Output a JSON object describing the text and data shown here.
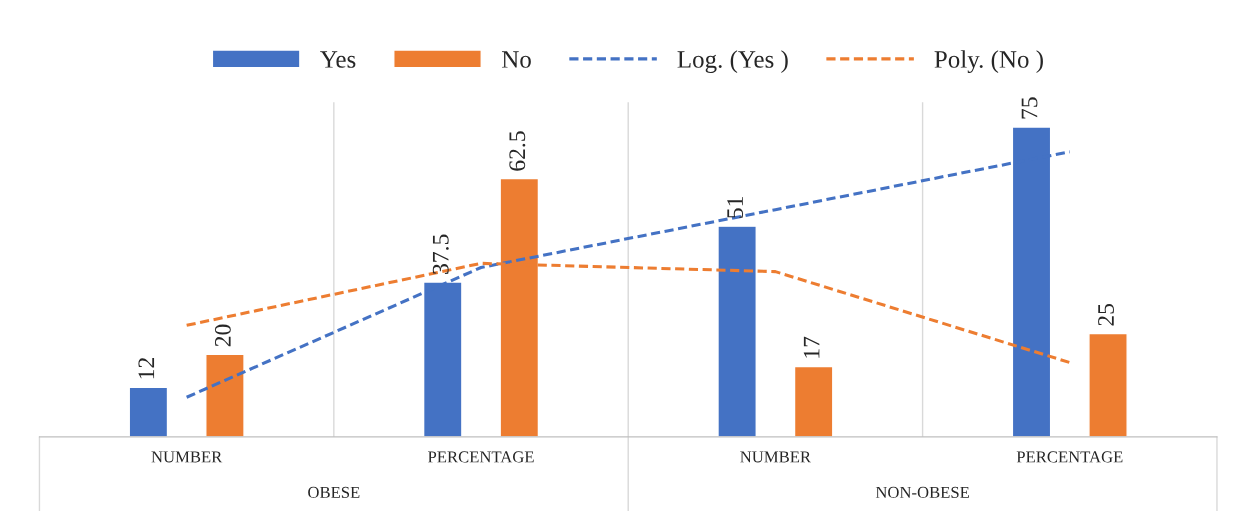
{
  "chart_data": {
    "type": "bar",
    "categories": [
      "NUMBER",
      "PERCENTAGE",
      "NUMBER",
      "PERCENTAGE"
    ],
    "series": [
      {
        "name": "Yes",
        "color": "#4472c4",
        "values": [
          12,
          37.5,
          51,
          75
        ],
        "value_labels": [
          "12",
          "37.5",
          "51",
          "75"
        ]
      },
      {
        "name": "No",
        "color": "#ed7d31",
        "values": [
          20,
          62.5,
          17,
          25
        ],
        "value_labels": [
          "20",
          "62.5",
          "17",
          "25"
        ]
      },
      {
        "name": "Log. (Yes )",
        "type": "line",
        "line_style": "dashed",
        "color": "#4472c4",
        "values": [
          9.6,
          41,
          55,
          69
        ]
      },
      {
        "name": "Poly. (No )",
        "type": "line",
        "line_style": "dashed",
        "color": "#ed7d31",
        "values": [
          27,
          42,
          40,
          18
        ]
      }
    ],
    "legend": "top",
    "annotations": [
      "OBESE",
      "NON-OBESE"
    ]
  }
}
